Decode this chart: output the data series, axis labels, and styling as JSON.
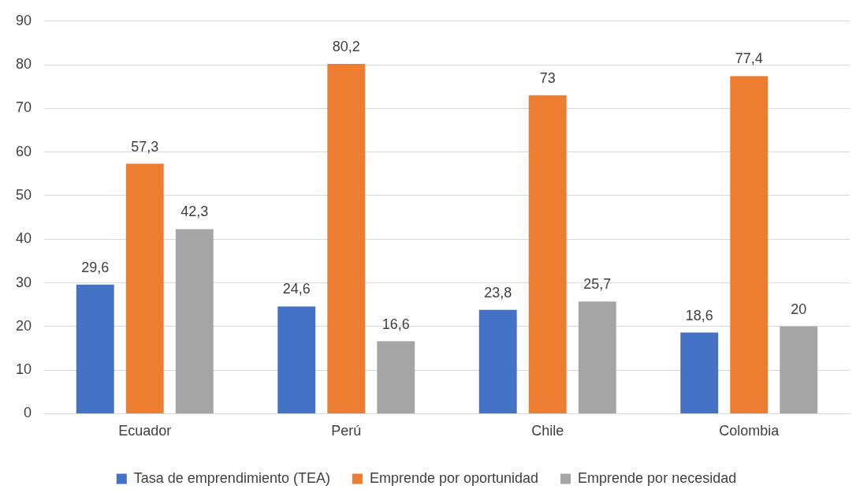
{
  "chart_data": {
    "type": "bar",
    "categories": [
      "Ecuador",
      "Perú",
      "Chile",
      "Colombia"
    ],
    "series": [
      {
        "name": "Tasa de emprendimiento (TEA)",
        "color": "#4472c4",
        "values": [
          29.6,
          24.6,
          23.8,
          18.6
        ],
        "value_labels": [
          "29,6",
          "24,6",
          "23,8",
          "18,6"
        ]
      },
      {
        "name": "Emprende por oportunidad",
        "color": "#ed7d31",
        "values": [
          57.3,
          80.2,
          73,
          77.4
        ],
        "value_labels": [
          "57,3",
          "80,2",
          "73",
          "77,4"
        ]
      },
      {
        "name": "Emprende por necesidad",
        "color": "#a5a5a5",
        "values": [
          42.3,
          16.6,
          25.7,
          20
        ],
        "value_labels": [
          "42,3",
          "16,6",
          "25,7",
          "20"
        ]
      }
    ],
    "ylim": [
      0,
      90
    ],
    "yticks": [
      0,
      10,
      20,
      30,
      40,
      50,
      60,
      70,
      80,
      90
    ],
    "grid": "y",
    "legend": "bottom"
  }
}
